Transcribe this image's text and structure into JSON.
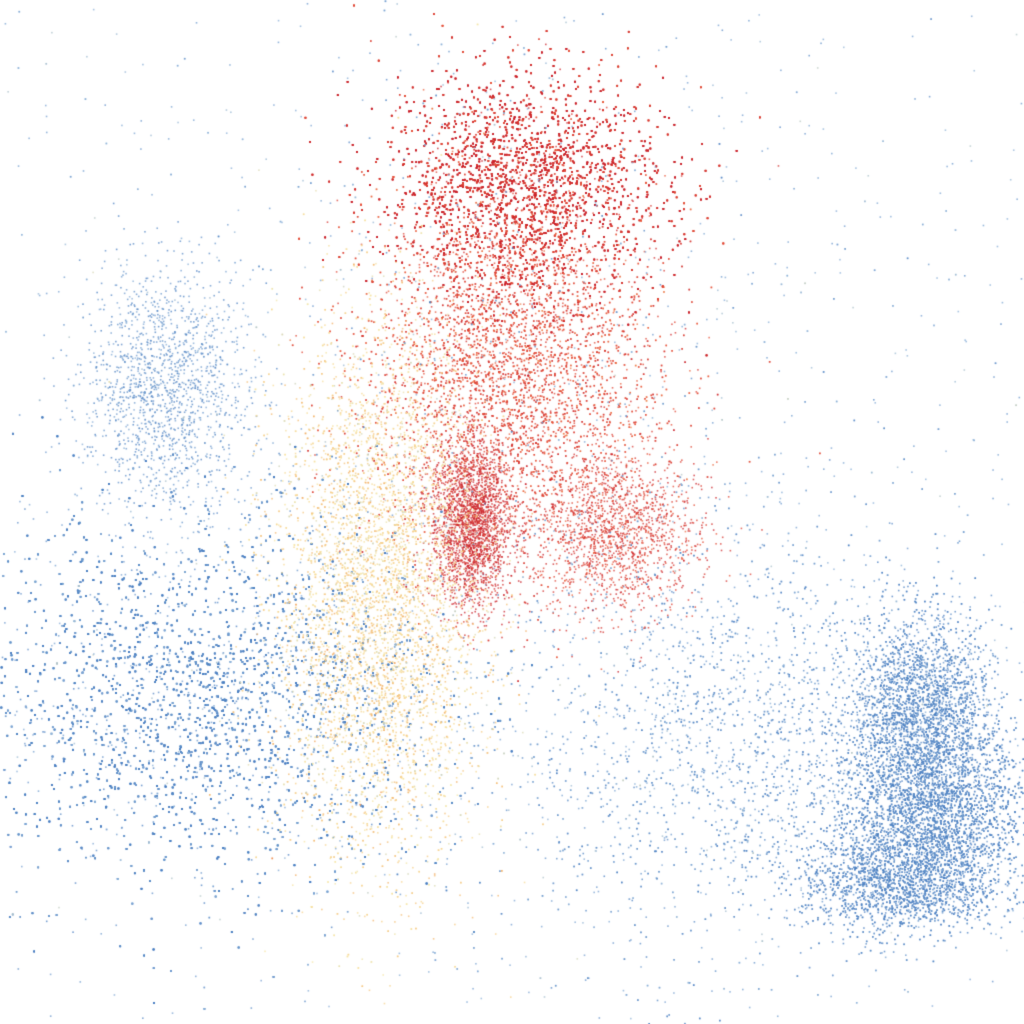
{
  "chart_data": {
    "type": "scatter",
    "title": "",
    "xlabel": "",
    "ylabel": "",
    "xlim": [
      0,
      1
    ],
    "ylim": [
      0,
      1
    ],
    "grid": false,
    "legend": "none",
    "colormap": [
      "#4a7fc1",
      "#8fb3d9",
      "#f7e7a6",
      "#f2a65a",
      "#e8553a",
      "#c9202a"
    ],
    "clusters": [
      {
        "name": "",
        "center": [
          0.19,
          0.32
        ],
        "spread": [
          0.12,
          0.09
        ],
        "count": 14000,
        "color_index": 0.05
      },
      {
        "name": "",
        "center": [
          0.16,
          0.62
        ],
        "spread": [
          0.04,
          0.06
        ],
        "count": 1500,
        "color_index": 0.08
      },
      {
        "name": "",
        "center": [
          0.9,
          0.3
        ],
        "spread": [
          0.035,
          0.05
        ],
        "count": 4000,
        "color_index": 0.02
      },
      {
        "name": "",
        "center": [
          0.91,
          0.21
        ],
        "spread": [
          0.05,
          0.035
        ],
        "count": 3500,
        "color_index": 0.02
      },
      {
        "name": "",
        "center": [
          0.88,
          0.14
        ],
        "spread": [
          0.05,
          0.025
        ],
        "count": 3000,
        "color_index": 0.02
      },
      {
        "name": "",
        "center": [
          0.72,
          0.28
        ],
        "spread": [
          0.11,
          0.1
        ],
        "count": 3000,
        "color_index": 0.1
      },
      {
        "name": "",
        "center": [
          0.51,
          0.82
        ],
        "spread": [
          0.07,
          0.055
        ],
        "count": 12000,
        "color_index": 0.95
      },
      {
        "name": "",
        "center": [
          0.5,
          0.64
        ],
        "spread": [
          0.07,
          0.09
        ],
        "count": 6000,
        "color_index": 0.85
      },
      {
        "name": "",
        "center": [
          0.46,
          0.49
        ],
        "spread": [
          0.02,
          0.04
        ],
        "count": 2200,
        "color_index": 0.98
      },
      {
        "name": "",
        "center": [
          0.6,
          0.48
        ],
        "spread": [
          0.04,
          0.04
        ],
        "count": 1500,
        "color_index": 0.9
      },
      {
        "name": "",
        "center": [
          0.37,
          0.42
        ],
        "spread": [
          0.05,
          0.13
        ],
        "count": 6000,
        "color_index": 0.45
      },
      {
        "name": "",
        "center": [
          0.5,
          0.5
        ],
        "spread": [
          0.35,
          0.35
        ],
        "count": 2500,
        "color_index": 0.15
      }
    ]
  }
}
